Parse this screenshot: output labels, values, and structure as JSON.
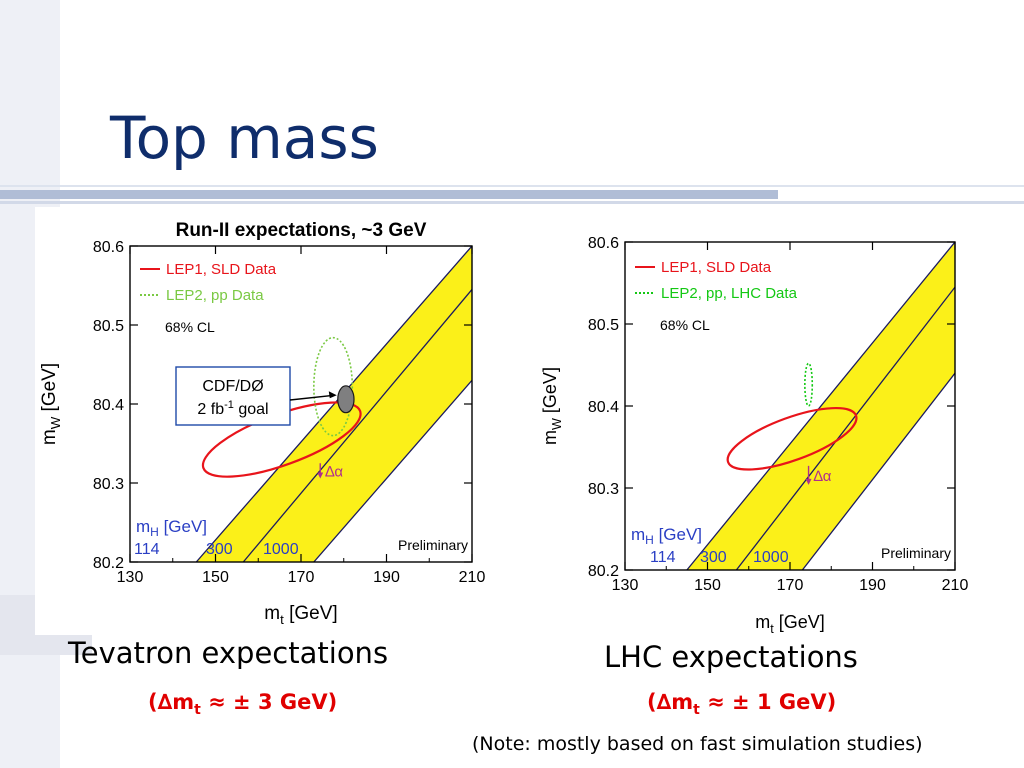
{
  "slide": {
    "title": "Top mass",
    "note": "(Note: mostly based on fast simulation studies)"
  },
  "captions": {
    "left": "Tevatron expectations",
    "right": "LHC expectations"
  },
  "precision": {
    "left": {
      "prefix": "(∆m",
      "sub": "t",
      "suffix": " ≈ ± 3 GeV)"
    },
    "right": {
      "prefix": "(∆m",
      "sub": "t",
      "suffix": " ≈ ± 1 GeV)"
    }
  },
  "chart_data": [
    {
      "type": "scatter",
      "title": "Run-II expectations, ~3 GeV",
      "xlabel": "mt",
      "xlabel_main": "m",
      "xlabel_sub": "t",
      "xlabel_unit": "[GeV]",
      "ylabel_main": "m",
      "ylabel_sub": "W",
      "ylabel_unit": "[GeV]",
      "xlim": [
        130,
        210
      ],
      "ylim": [
        80.2,
        80.6
      ],
      "xticks": [
        130,
        150,
        170,
        190,
        210
      ],
      "yticks": [
        80.2,
        80.3,
        80.4,
        80.5,
        80.6
      ],
      "legend": [
        {
          "label": "LEP1, SLD Data",
          "color": "#e8141b",
          "style": "solid"
        },
        {
          "label": "LEP2, pp Data",
          "color": "#7ac943",
          "style": "dotted"
        }
      ],
      "cl_label": "68% CL",
      "mh_label": "m",
      "mh_sub": "H",
      "mh_unit": "[GeV]",
      "mh_values": [
        "114",
        "300",
        "1000"
      ],
      "preliminary": "Preliminary",
      "annotation_box": {
        "line1": "CDF/DØ",
        "line2_a": "2 fb",
        "line2_sup": "-1",
        "line2_b": " goal"
      },
      "delta_alpha": "∆α",
      "band": {
        "color": "#fbf019",
        "edges": [
          [
            [
              145.5,
              80.2
            ],
            [
              210,
              80.6
            ]
          ],
          [
            [
              156.5,
              80.2
            ],
            [
              210,
              80.545
            ]
          ],
          [
            [
              173,
              80.2
            ],
            [
              210,
              80.43
            ]
          ]
        ],
        "upper_edge": [
          [
            145.5,
            80.2
          ],
          [
            210,
            80.6
          ]
        ],
        "lower_edge": [
          [
            173,
            80.2
          ],
          [
            210,
            80.43
          ]
        ]
      },
      "ellipses": [
        {
          "name": "LEP1, SLD Data",
          "cx": 165.5,
          "cy": 80.355,
          "rx": 19.5,
          "ry": 0.032,
          "angle_deg": -20,
          "color": "#e8141b",
          "style": "solid"
        },
        {
          "name": "LEP2, pp Data",
          "cx": 177.5,
          "cy": 80.422,
          "rx": 4.5,
          "ry": 0.062,
          "angle_deg": 0,
          "color": "#7ac943",
          "style": "dotted"
        },
        {
          "name": "CDF/DØ 2 fb-1 goal",
          "cx": 180.5,
          "cy": 80.406,
          "rx": 1.9,
          "ry": 0.017,
          "angle_deg": 0,
          "color": "#7f7f80",
          "style": "filled"
        }
      ],
      "delta_alpha_arrow": {
        "x": 174.5,
        "y_from": 80.325,
        "y_to": 80.307
      }
    },
    {
      "type": "scatter",
      "title": "",
      "xlabel_main": "m",
      "xlabel_sub": "t",
      "xlabel_unit": "[GeV]",
      "ylabel_main": "m",
      "ylabel_sub": "W",
      "ylabel_unit": "[GeV]",
      "xlim": [
        130,
        210
      ],
      "ylim": [
        80.2,
        80.6
      ],
      "xticks": [
        130,
        150,
        170,
        190,
        210
      ],
      "yticks": [
        80.2,
        80.3,
        80.4,
        80.5,
        80.6
      ],
      "legend": [
        {
          "label": "LEP1, SLD Data",
          "color": "#e8141b",
          "style": "solid"
        },
        {
          "label": "LEP2, pp, LHC Data",
          "color": "#14c814",
          "style": "dotted"
        }
      ],
      "cl_label": "68% CL",
      "mh_label": "m",
      "mh_sub": "H",
      "mh_unit": "[GeV]",
      "mh_values": [
        "114",
        "300",
        "1000"
      ],
      "preliminary": "Preliminary",
      "delta_alpha": "∆α",
      "band": {
        "color": "#fbf019",
        "edges": [
          [
            [
              145,
              80.2
            ],
            [
              210,
              80.6
            ]
          ],
          [
            [
              157,
              80.2
            ],
            [
              210,
              80.545
            ]
          ],
          [
            [
              173,
              80.2
            ],
            [
              210,
              80.44
            ]
          ]
        ],
        "upper_edge": [
          [
            145,
            80.2
          ],
          [
            210,
            80.6
          ]
        ],
        "lower_edge": [
          [
            173,
            80.2
          ],
          [
            210,
            80.44
          ]
        ]
      },
      "ellipses": [
        {
          "name": "LEP1, SLD Data",
          "cx": 170.5,
          "cy": 80.36,
          "rx": 16.5,
          "ry": 0.026,
          "angle_deg": -20,
          "color": "#e8141b",
          "style": "solid"
        },
        {
          "name": "LEP2, pp, LHC Data",
          "cx": 174.5,
          "cy": 80.426,
          "rx": 0.9,
          "ry": 0.026,
          "angle_deg": 0,
          "color": "#14c814",
          "style": "dotted"
        }
      ],
      "delta_alpha_arrow": {
        "x": 174.5,
        "y_from": 80.327,
        "y_to": 80.305
      }
    }
  ]
}
